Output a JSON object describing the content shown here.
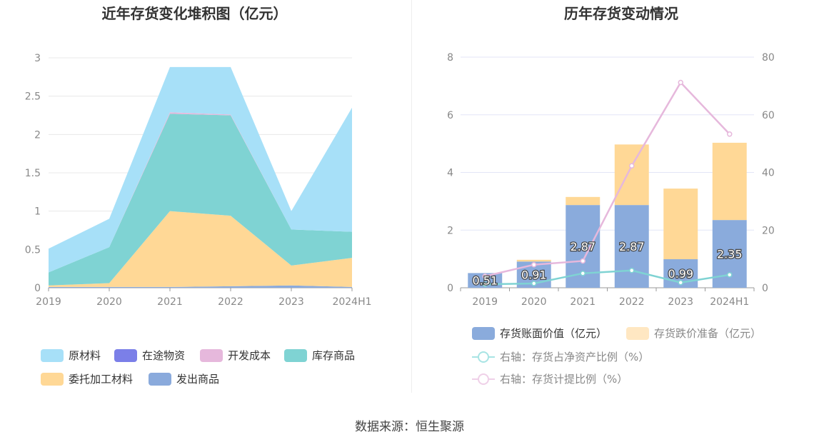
{
  "left_chart": {
    "title": "近年存货变化堆积图（亿元）",
    "legend": [
      "原材料",
      "在途物资",
      "开发成本",
      "库存商品",
      "委托加工材料",
      "发出商品"
    ]
  },
  "right_chart": {
    "title": "历年存货变动情况",
    "legend": [
      "存货账面价值（亿元）",
      "存货跌价准备（亿元）",
      "右轴：存货占净资产比例（%）",
      "右轴：存货计提比例（%）"
    ]
  },
  "source": "数据来源：恒生聚源",
  "colors": {
    "raw_material": "#a7e0f8",
    "in_transit": "#7b7fe8",
    "dev_cost": "#e6b8dc",
    "stock_goods": "#7fd3d3",
    "consigned": "#ffd896",
    "shipped": "#8aaadc",
    "book_value": "#8aabdc",
    "impairment": "#ffd896",
    "ratio_net_assets": "#7fd3d3",
    "provision_ratio": "#e6b8dc"
  },
  "chart_data": [
    {
      "type": "area",
      "title": "近年存货变化堆积图（亿元）",
      "x": [
        "2019",
        "2020",
        "2021",
        "2022",
        "2023",
        "2024H1"
      ],
      "ylim": [
        0,
        3
      ],
      "yticks": [
        "0",
        "0.5",
        "1",
        "1.5",
        "2",
        "2.5",
        "3"
      ],
      "stacked": true,
      "series": [
        {
          "name": "发出商品",
          "values": [
            0.01,
            0.01,
            0.01,
            0.02,
            0.03,
            0.01
          ]
        },
        {
          "name": "委托加工材料",
          "values": [
            0.02,
            0.05,
            0.99,
            0.92,
            0.26,
            0.38
          ]
        },
        {
          "name": "库存商品",
          "values": [
            0.17,
            0.47,
            1.27,
            1.31,
            0.47,
            0.34
          ]
        },
        {
          "name": "开发成本",
          "values": [
            0,
            0,
            0.02,
            0.01,
            0,
            0
          ]
        },
        {
          "name": "在途物资",
          "values": [
            0,
            0,
            0,
            0,
            0,
            0
          ]
        },
        {
          "name": "原材料",
          "values": [
            0.31,
            0.37,
            0.59,
            0.62,
            0.24,
            1.62
          ]
        }
      ]
    },
    {
      "type": "bar",
      "title": "历年存货变动情况",
      "categories": [
        "2019",
        "2020",
        "2021",
        "2022",
        "2023",
        "2024H1"
      ],
      "ylim": [
        0,
        8
      ],
      "y2lim": [
        0,
        80
      ],
      "yticks": [
        "0",
        "2",
        "4",
        "6",
        "8"
      ],
      "y2ticks": [
        "0",
        "20",
        "40",
        "60",
        "80"
      ],
      "series": [
        {
          "name": "存货账面价值（亿元）",
          "type": "bar",
          "stack": "inventory",
          "values": [
            0.51,
            0.91,
            2.87,
            2.87,
            0.99,
            2.35
          ],
          "labels": [
            "0.51",
            "0.91",
            "2.87",
            "2.87",
            "0.99",
            "2.35"
          ]
        },
        {
          "name": "存货跌价准备（亿元）",
          "type": "bar",
          "stack": "inventory",
          "values": [
            0.0,
            0.06,
            0.28,
            2.1,
            2.45,
            2.68
          ]
        },
        {
          "name": "右轴：存货占净资产比例（%）",
          "type": "line",
          "axis": "right",
          "values": [
            1.2,
            1.5,
            5.0,
            6.0,
            1.8,
            4.5
          ]
        },
        {
          "name": "右轴：存货计提比例（%）",
          "type": "line",
          "axis": "right",
          "values": [
            4.0,
            8.0,
            9.3,
            42.3,
            71.2,
            53.3
          ]
        }
      ]
    }
  ]
}
